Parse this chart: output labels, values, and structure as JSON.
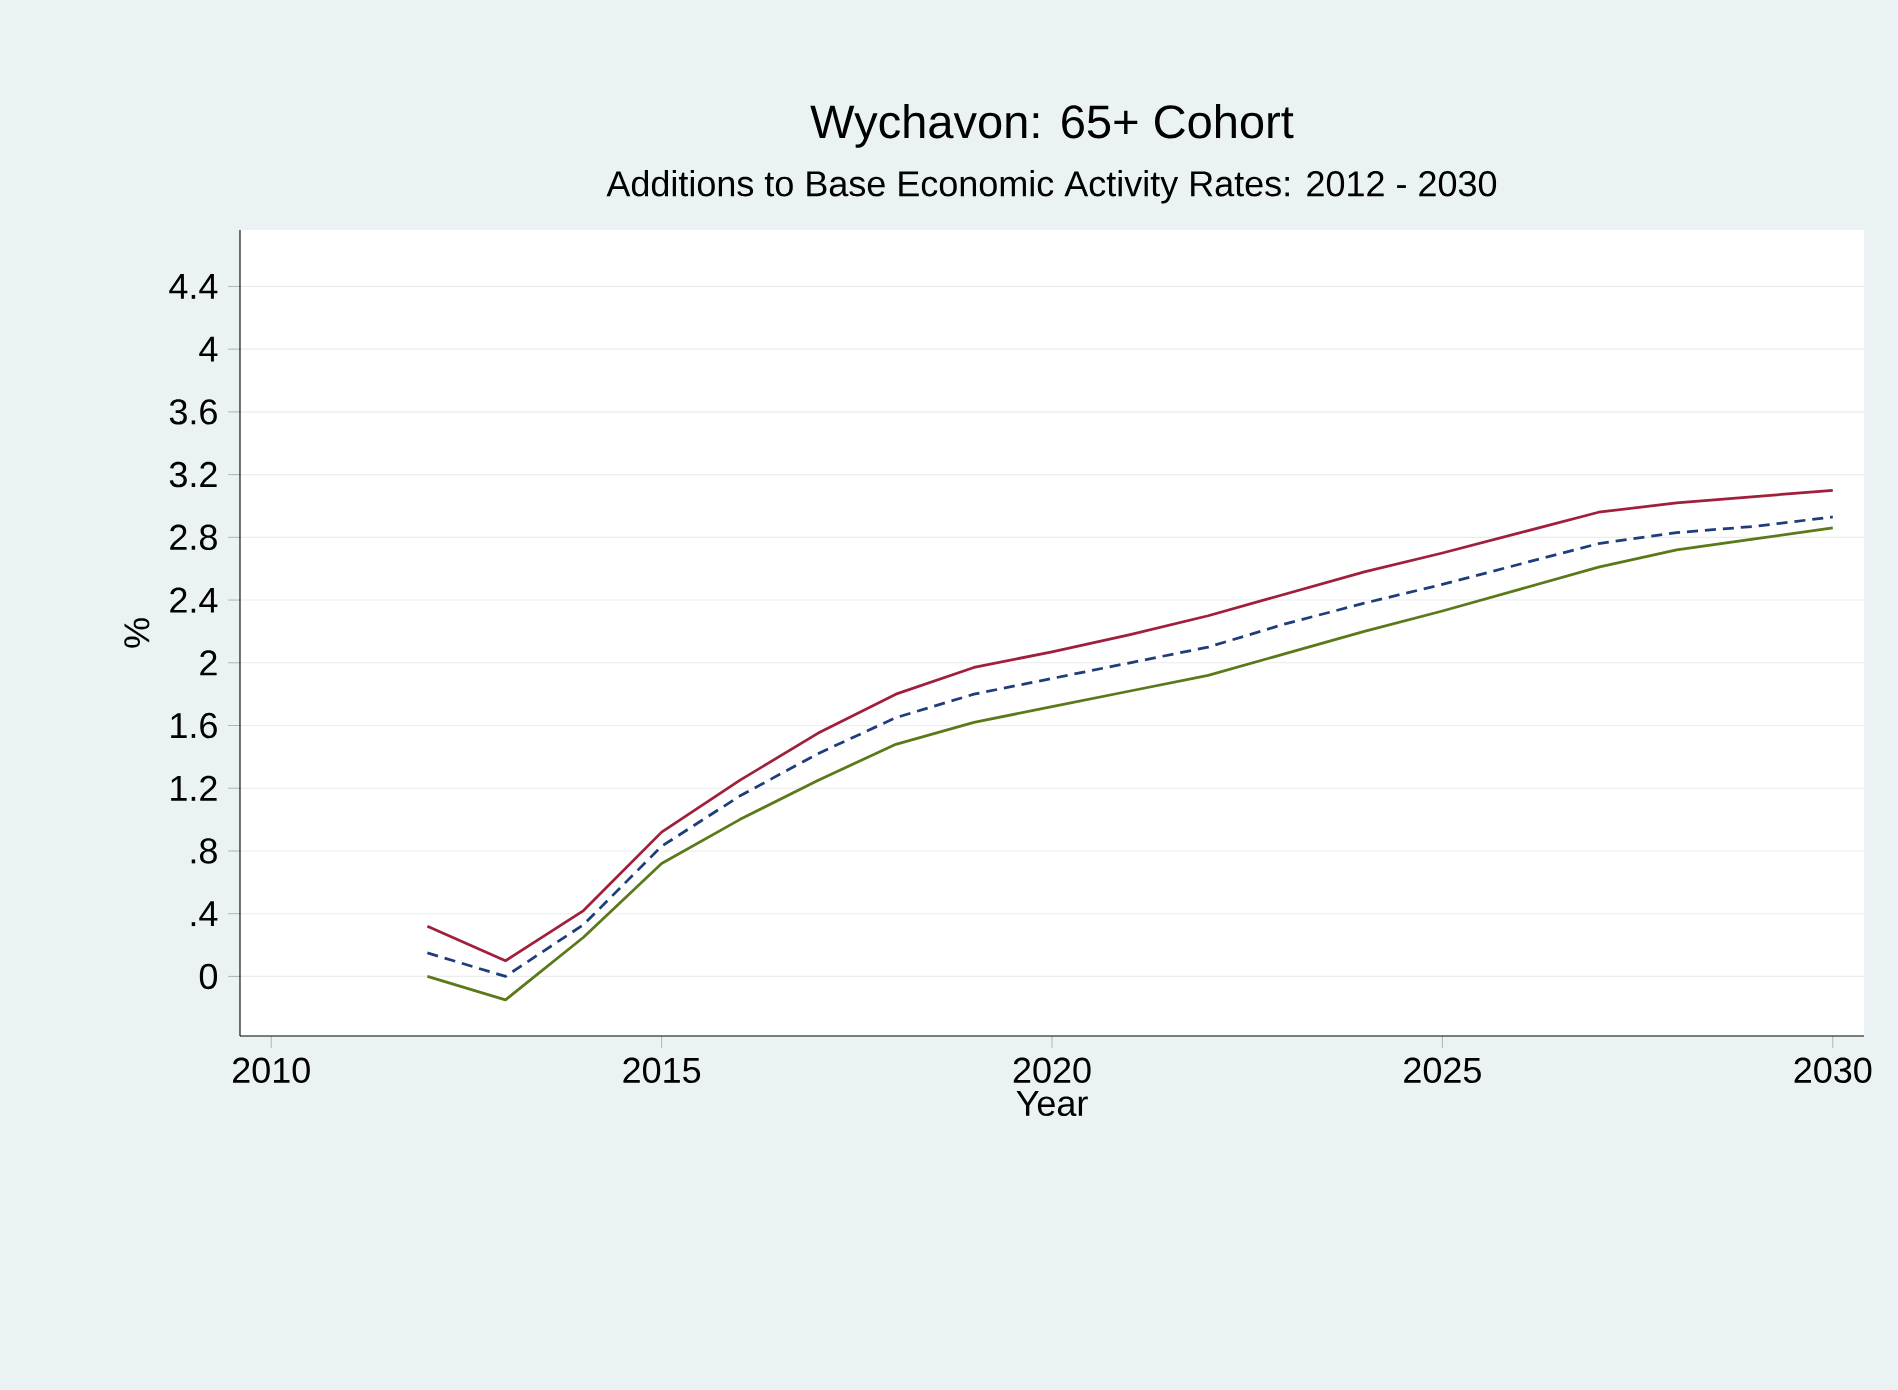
{
  "chart_data": {
    "type": "line",
    "title": "Wychavon: 65+ Cohort",
    "subtitle": "Additions to Base Economic Activity Rates: 2012 - 2030",
    "xlabel": "Year",
    "ylabel": "%",
    "x": [
      2012,
      2013,
      2014,
      2015,
      2016,
      2017,
      2018,
      2019,
      2020,
      2021,
      2022,
      2023,
      2024,
      2025,
      2026,
      2027,
      2028,
      2029,
      2030
    ],
    "series": [
      {
        "color": "#1f3d7a",
        "line_style": "dashed",
        "values": [
          0.15,
          0.0,
          0.33,
          0.83,
          1.15,
          1.42,
          1.65,
          1.8,
          1.9,
          2.0,
          2.1,
          2.25,
          2.38,
          2.5,
          2.63,
          2.76,
          2.83,
          2.87,
          2.93
        ]
      },
      {
        "color": "#a01f3a",
        "line_style": "solid",
        "values": [
          0.32,
          0.1,
          0.42,
          0.92,
          1.25,
          1.55,
          1.8,
          1.97,
          2.07,
          2.18,
          2.3,
          2.44,
          2.58,
          2.7,
          2.83,
          2.96,
          3.02,
          3.06,
          3.1
        ]
      },
      {
        "color": "#5a7a1a",
        "line_style": "solid",
        "values": [
          0.0,
          -0.15,
          0.25,
          0.72,
          1.0,
          1.25,
          1.48,
          1.62,
          1.72,
          1.82,
          1.92,
          2.06,
          2.2,
          2.33,
          2.47,
          2.61,
          2.72,
          2.79,
          2.86
        ]
      }
    ],
    "xlim": [
      2009.6,
      2030.4
    ],
    "ylim": [
      -0.38,
      4.76
    ],
    "xticks": [
      2010,
      2015,
      2020,
      2025,
      2030
    ],
    "yticks": [
      0,
      {
        "value": 0.4,
        "label": ".4"
      },
      {
        "value": 0.8,
        "label": ".8"
      },
      1.2,
      1.6,
      2,
      2.4,
      2.8,
      3.2,
      3.6,
      4,
      4.4
    ],
    "grid": "y",
    "marker": "none"
  }
}
